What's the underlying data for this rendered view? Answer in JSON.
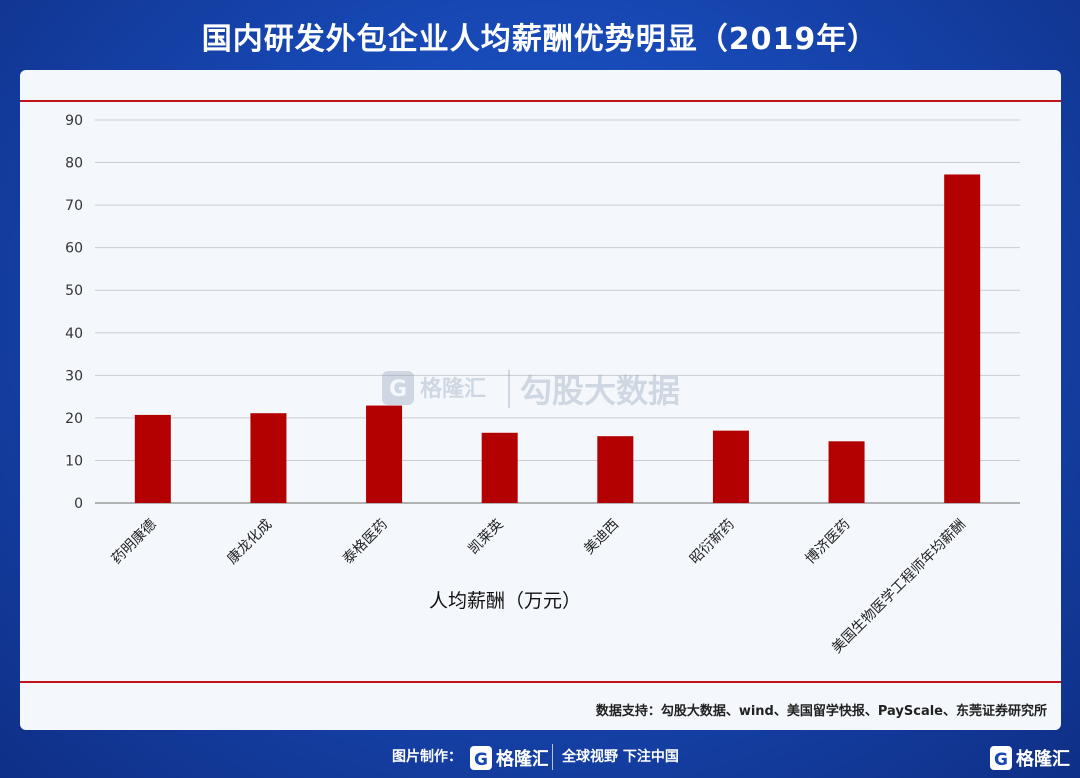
{
  "title": "国内研发外包企业人均薪酬优势明显（2019年）",
  "source": "数据支持：勾股大数据、wind、美国留学快报、PayScale、东莞证券研究所",
  "footer": {
    "made_by": "图片制作：",
    "brand": "格隆汇",
    "slogan": "全球视野 下注中国"
  },
  "watermark": {
    "brand": "格隆汇",
    "text": "勾股大数据"
  },
  "colors": {
    "bar": "#b30000",
    "title_bg": "#1748b4",
    "rule": "#c0141c"
  },
  "chart_data": {
    "type": "bar",
    "categories": [
      "药明康德",
      "康龙化成",
      "泰格医药",
      "凯莱英",
      "美迪西",
      "昭衍新药",
      "博济医药",
      "美国生物医学工程师年均薪酬"
    ],
    "values": [
      20.7,
      21.1,
      22.9,
      16.5,
      15.7,
      17.0,
      14.5,
      77.2
    ],
    "ylim": [
      0,
      90
    ],
    "yticks": [
      0,
      10,
      20,
      30,
      40,
      50,
      60,
      70,
      80,
      90
    ],
    "xlabel": "人均薪酬（万元）",
    "grid": true
  }
}
